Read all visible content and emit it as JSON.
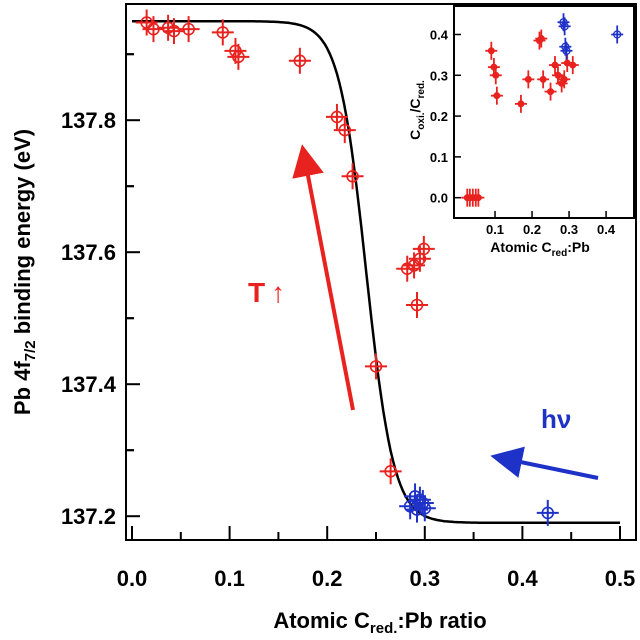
{
  "colors": {
    "red": "#e8221e",
    "blue": "#1f32c8",
    "fit": "#000000"
  },
  "chart_data": [
    {
      "type": "scatter",
      "ylabel_parts": {
        "pre": "Pb 4f",
        "sub": "7/2",
        "post": " binding energy (eV)"
      },
      "xlabel_parts": {
        "pre": "Atomic C",
        "sub": "red.",
        "post": ":Pb ratio"
      },
      "xlim": [
        0.0,
        0.5
      ],
      "ylim": [
        137.17,
        137.97
      ],
      "x_ticks": [
        "0.0",
        "0.1",
        "0.2",
        "0.3",
        "0.4",
        "0.5"
      ],
      "y_ticks": [
        "137.2",
        "137.4",
        "137.6",
        "137.8"
      ],
      "grid": false,
      "annotations": {
        "temperature": "T",
        "temperature_arrow": "↑",
        "photon": "hν"
      },
      "series": [
        {
          "color": "red",
          "points": [
            {
              "x": 0.015,
              "y": 137.948
            },
            {
              "x": 0.022,
              "y": 137.938
            },
            {
              "x": 0.037,
              "y": 137.94
            },
            {
              "x": 0.043,
              "y": 137.935
            },
            {
              "x": 0.058,
              "y": 137.938
            },
            {
              "x": 0.093,
              "y": 137.933
            },
            {
              "x": 0.106,
              "y": 137.905
            },
            {
              "x": 0.109,
              "y": 137.896
            },
            {
              "x": 0.172,
              "y": 137.89
            },
            {
              "x": 0.21,
              "y": 137.805
            },
            {
              "x": 0.218,
              "y": 137.785
            },
            {
              "x": 0.226,
              "y": 137.715
            },
            {
              "x": 0.25,
              "y": 137.427
            },
            {
              "x": 0.265,
              "y": 137.268
            },
            {
              "x": 0.282,
              "y": 137.575
            },
            {
              "x": 0.289,
              "y": 137.58
            },
            {
              "x": 0.292,
              "y": 137.52
            },
            {
              "x": 0.295,
              "y": 137.59
            },
            {
              "x": 0.299,
              "y": 137.605
            }
          ]
        },
        {
          "color": "blue",
          "points": [
            {
              "x": 0.285,
              "y": 137.215
            },
            {
              "x": 0.29,
              "y": 137.23
            },
            {
              "x": 0.292,
              "y": 137.21
            },
            {
              "x": 0.295,
              "y": 137.225
            },
            {
              "x": 0.298,
              "y": 137.22
            },
            {
              "x": 0.3,
              "y": 137.212
            },
            {
              "x": 0.426,
              "y": 137.205
            }
          ]
        }
      ],
      "fit": {
        "type": "sigmoid",
        "top": 137.95,
        "bottom": 137.19,
        "x0": 0.24,
        "width": 0.014
      }
    },
    {
      "type": "scatter",
      "role": "inset",
      "ylabel_parts": {
        "a": "C",
        "asub": "oxi.",
        "b": "/C",
        "bsub": "red."
      },
      "xlabel_parts": {
        "pre": "Atomic C",
        "sub": "red",
        "post": ":Pb"
      },
      "xlim": [
        0.0,
        0.47
      ],
      "ylim": [
        -0.04,
        0.46
      ],
      "x_ticks": [
        "0.1",
        "0.2",
        "0.3",
        "0.4"
      ],
      "y_ticks": [
        "0.0",
        "0.1",
        "0.2",
        "0.3",
        "0.4"
      ],
      "series": [
        {
          "color": "red",
          "points": [
            {
              "x": 0.025,
              "y": 0.0
            },
            {
              "x": 0.032,
              "y": 0.0
            },
            {
              "x": 0.04,
              "y": 0.0
            },
            {
              "x": 0.048,
              "y": 0.0
            },
            {
              "x": 0.055,
              "y": 0.0
            },
            {
              "x": 0.09,
              "y": 0.36
            },
            {
              "x": 0.097,
              "y": 0.32
            },
            {
              "x": 0.102,
              "y": 0.3
            },
            {
              "x": 0.105,
              "y": 0.25
            },
            {
              "x": 0.17,
              "y": 0.23
            },
            {
              "x": 0.19,
              "y": 0.29
            },
            {
              "x": 0.22,
              "y": 0.385
            },
            {
              "x": 0.225,
              "y": 0.39
            },
            {
              "x": 0.23,
              "y": 0.29
            },
            {
              "x": 0.25,
              "y": 0.26
            },
            {
              "x": 0.262,
              "y": 0.325
            },
            {
              "x": 0.27,
              "y": 0.3
            },
            {
              "x": 0.28,
              "y": 0.28
            },
            {
              "x": 0.287,
              "y": 0.29
            },
            {
              "x": 0.295,
              "y": 0.33
            },
            {
              "x": 0.31,
              "y": 0.325
            }
          ]
        },
        {
          "color": "blue",
          "points": [
            {
              "x": 0.285,
              "y": 0.43
            },
            {
              "x": 0.288,
              "y": 0.42
            },
            {
              "x": 0.29,
              "y": 0.37
            },
            {
              "x": 0.293,
              "y": 0.36
            },
            {
              "x": 0.43,
              "y": 0.4
            }
          ]
        }
      ]
    }
  ]
}
